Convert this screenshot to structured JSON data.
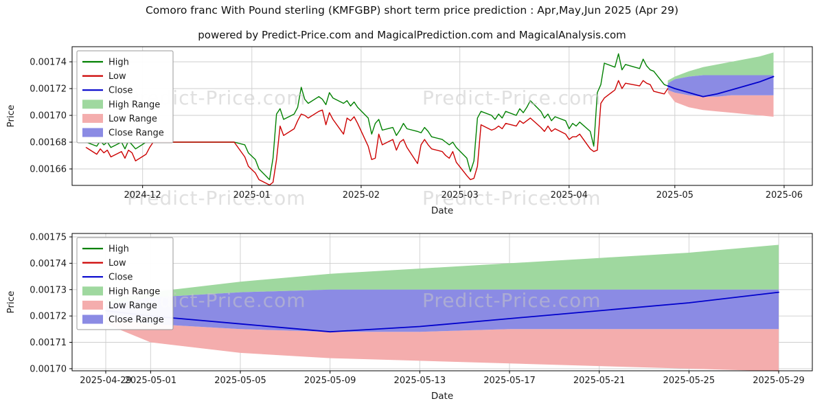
{
  "title": "Comoro franc With Pound sterling (KMFGBP) short term price prediction : Apr,May,Jun 2025 (Apr 29)",
  "subtitle": "powered by Predict-Price.com and MagicalPrediction.com and MagicalAnalysis.com",
  "watermark_text": "Predict-Price.com",
  "legend": {
    "entries": [
      {
        "label": "High",
        "type": "line",
        "color": "#008000"
      },
      {
        "label": "Low",
        "type": "line",
        "color": "#cc0000"
      },
      {
        "label": "Close",
        "type": "line",
        "color": "#0000cc"
      },
      {
        "label": "High Range",
        "type": "patch",
        "color": "#9fd89f"
      },
      {
        "label": "Low Range",
        "type": "patch",
        "color": "#f4adad"
      },
      {
        "label": "Close Range",
        "type": "patch",
        "color": "#8b8be4"
      }
    ]
  },
  "chart_data": [
    {
      "type": "line",
      "name": "history-with-forecast",
      "xlabel": "Date",
      "ylabel": "Price",
      "xlim": [
        "2024-11-11",
        "2025-06-09"
      ],
      "ylim": [
        0.0016477,
        0.0017513
      ],
      "grid": true,
      "legend_position": "upper-left",
      "yticks": [
        {
          "v": 0.00166,
          "label": "0.00166"
        },
        {
          "v": 0.00168,
          "label": "0.00168"
        },
        {
          "v": 0.0017,
          "label": "0.00170"
        },
        {
          "v": 0.00172,
          "label": "0.00172"
        },
        {
          "v": 0.00174,
          "label": "0.00174"
        }
      ],
      "xticks": [
        {
          "d": "2024-12-01",
          "label": "2024-12"
        },
        {
          "d": "2025-01-01",
          "label": "2025-01"
        },
        {
          "d": "2025-02-01",
          "label": "2025-02"
        },
        {
          "d": "2025-03-01",
          "label": "2025-03"
        },
        {
          "d": "2025-04-01",
          "label": "2025-04"
        },
        {
          "d": "2025-05-01",
          "label": "2025-05"
        },
        {
          "d": "2025-06-01",
          "label": "2025-06"
        }
      ],
      "historical": {
        "columns": [
          "date",
          "high",
          "low"
        ],
        "rows": [
          [
            "2024-11-15",
            0.00168,
            0.001676
          ],
          [
            "2024-11-18",
            0.001677,
            0.001671
          ],
          [
            "2024-11-19",
            0.001681,
            0.001675
          ],
          [
            "2024-11-20",
            0.001678,
            0.001672
          ],
          [
            "2024-11-21",
            0.00168,
            0.001674
          ],
          [
            "2024-11-22",
            0.001676,
            0.001669
          ],
          [
            "2024-11-25",
            0.00168,
            0.001673
          ],
          [
            "2024-11-26",
            0.001675,
            0.001668
          ],
          [
            "2024-11-27",
            0.001681,
            0.001674
          ],
          [
            "2024-11-28",
            0.001678,
            0.001672
          ],
          [
            "2024-11-29",
            0.001675,
            0.001666
          ],
          [
            "2024-12-02",
            0.00168,
            0.001671
          ],
          [
            "2024-12-03",
            0.001682,
            0.001676
          ],
          [
            "2024-12-04",
            0.00168,
            0.00168
          ],
          [
            "2024-12-09",
            0.00168,
            0.00168
          ],
          [
            "2024-12-13",
            0.00168,
            0.00168
          ],
          [
            "2024-12-18",
            0.00168,
            0.00168
          ],
          [
            "2024-12-23",
            0.00168,
            0.00168
          ],
          [
            "2024-12-27",
            0.00168,
            0.00168
          ],
          [
            "2024-12-30",
            0.001678,
            0.001669
          ],
          [
            "2024-12-31",
            0.001672,
            0.001662
          ],
          [
            "2025-01-02",
            0.001667,
            0.001657
          ],
          [
            "2025-01-03",
            0.00166,
            0.001652
          ],
          [
            "2025-01-06",
            0.001652,
            0.001648
          ],
          [
            "2025-01-07",
            0.001668,
            0.00165
          ],
          [
            "2025-01-08",
            0.001701,
            0.001667
          ],
          [
            "2025-01-09",
            0.001705,
            0.001692
          ],
          [
            "2025-01-10",
            0.001697,
            0.001685
          ],
          [
            "2025-01-13",
            0.001701,
            0.00169
          ],
          [
            "2025-01-14",
            0.001706,
            0.001696
          ],
          [
            "2025-01-15",
            0.001721,
            0.001701
          ],
          [
            "2025-01-16",
            0.001712,
            0.0017
          ],
          [
            "2025-01-17",
            0.001709,
            0.001698
          ],
          [
            "2025-01-20",
            0.001714,
            0.001703
          ],
          [
            "2025-01-21",
            0.001712,
            0.001704
          ],
          [
            "2025-01-22",
            0.001708,
            0.001693
          ],
          [
            "2025-01-23",
            0.001717,
            0.001702
          ],
          [
            "2025-01-24",
            0.001713,
            0.001697
          ],
          [
            "2025-01-27",
            0.001709,
            0.001686
          ],
          [
            "2025-01-28",
            0.001711,
            0.001698
          ],
          [
            "2025-01-29",
            0.001707,
            0.001696
          ],
          [
            "2025-01-30",
            0.00171,
            0.001699
          ],
          [
            "2025-01-31",
            0.001706,
            0.001694
          ],
          [
            "2025-02-03",
            0.001698,
            0.001677
          ],
          [
            "2025-02-04",
            0.001686,
            0.001667
          ],
          [
            "2025-02-05",
            0.001694,
            0.001668
          ],
          [
            "2025-02-06",
            0.001697,
            0.001686
          ],
          [
            "2025-02-07",
            0.001689,
            0.001678
          ],
          [
            "2025-02-10",
            0.001691,
            0.001682
          ],
          [
            "2025-02-11",
            0.001685,
            0.001674
          ],
          [
            "2025-02-12",
            0.001689,
            0.00168
          ],
          [
            "2025-02-13",
            0.001694,
            0.001682
          ],
          [
            "2025-02-14",
            0.00169,
            0.001676
          ],
          [
            "2025-02-17",
            0.001688,
            0.001664
          ],
          [
            "2025-02-18",
            0.001687,
            0.001678
          ],
          [
            "2025-02-19",
            0.001691,
            0.001682
          ],
          [
            "2025-02-20",
            0.001688,
            0.001678
          ],
          [
            "2025-02-21",
            0.001684,
            0.001675
          ],
          [
            "2025-02-24",
            0.001682,
            0.001673
          ],
          [
            "2025-02-25",
            0.00168,
            0.00167
          ],
          [
            "2025-02-26",
            0.001678,
            0.001668
          ],
          [
            "2025-02-27",
            0.00168,
            0.001673
          ],
          [
            "2025-02-28",
            0.001676,
            0.001665
          ],
          [
            "2025-03-03",
            0.001668,
            0.001655
          ],
          [
            "2025-03-04",
            0.001658,
            0.001652
          ],
          [
            "2025-03-05",
            0.001666,
            0.001653
          ],
          [
            "2025-03-06",
            0.001698,
            0.001662
          ],
          [
            "2025-03-07",
            0.001703,
            0.001693
          ],
          [
            "2025-03-10",
            0.0017,
            0.001689
          ],
          [
            "2025-03-11",
            0.001697,
            0.00169
          ],
          [
            "2025-03-12",
            0.001701,
            0.001692
          ],
          [
            "2025-03-13",
            0.001698,
            0.00169
          ],
          [
            "2025-03-14",
            0.001703,
            0.001694
          ],
          [
            "2025-03-17",
            0.0017,
            0.001692
          ],
          [
            "2025-03-18",
            0.001705,
            0.001696
          ],
          [
            "2025-03-19",
            0.001702,
            0.001694
          ],
          [
            "2025-03-20",
            0.001706,
            0.001696
          ],
          [
            "2025-03-21",
            0.001711,
            0.001698
          ],
          [
            "2025-03-24",
            0.001703,
            0.001691
          ],
          [
            "2025-03-25",
            0.001698,
            0.001688
          ],
          [
            "2025-03-26",
            0.001701,
            0.001692
          ],
          [
            "2025-03-27",
            0.001696,
            0.001688
          ],
          [
            "2025-03-28",
            0.001699,
            0.00169
          ],
          [
            "2025-03-31",
            0.001696,
            0.001686
          ],
          [
            "2025-04-01",
            0.00169,
            0.001682
          ],
          [
            "2025-04-02",
            0.001694,
            0.001684
          ],
          [
            "2025-04-03",
            0.001692,
            0.001684
          ],
          [
            "2025-04-04",
            0.001695,
            0.001686
          ],
          [
            "2025-04-07",
            0.001688,
            0.001675
          ],
          [
            "2025-04-08",
            0.001677,
            0.001673
          ],
          [
            "2025-04-09",
            0.001717,
            0.001674
          ],
          [
            "2025-04-10",
            0.001723,
            0.001709
          ],
          [
            "2025-04-11",
            0.001739,
            0.001713
          ],
          [
            "2025-04-14",
            0.001736,
            0.001719
          ],
          [
            "2025-04-15",
            0.001746,
            0.001726
          ],
          [
            "2025-04-16",
            0.001734,
            0.00172
          ],
          [
            "2025-04-17",
            0.001738,
            0.001724
          ],
          [
            "2025-04-21",
            0.001735,
            0.001722
          ],
          [
            "2025-04-22",
            0.001742,
            0.001726
          ],
          [
            "2025-04-23",
            0.001737,
            0.001724
          ],
          [
            "2025-04-24",
            0.001734,
            0.001723
          ],
          [
            "2025-04-25",
            0.001733,
            0.001718
          ],
          [
            "2025-04-28",
            0.001723,
            0.001716
          ],
          [
            "2025-04-29",
            0.001722,
            0.00172
          ]
        ]
      },
      "forecast": {
        "columns": [
          "date",
          "close",
          "high_top",
          "close_top",
          "close_bottom",
          "low_bottom"
        ],
        "rows": [
          [
            "2025-04-29",
            0.001722,
            0.001726,
            0.001724,
            0.001719,
            0.001717
          ],
          [
            "2025-05-01",
            0.00172,
            0.001729,
            0.001727,
            0.001717,
            0.00171
          ],
          [
            "2025-05-05",
            0.001717,
            0.001733,
            0.001729,
            0.001715,
            0.001706
          ],
          [
            "2025-05-09",
            0.001714,
            0.001736,
            0.00173,
            0.001714,
            0.001704
          ],
          [
            "2025-05-13",
            0.001716,
            0.001738,
            0.00173,
            0.001714,
            0.001703
          ],
          [
            "2025-05-17",
            0.001719,
            0.00174,
            0.00173,
            0.001715,
            0.001702
          ],
          [
            "2025-05-21",
            0.001722,
            0.001742,
            0.00173,
            0.001715,
            0.001701
          ],
          [
            "2025-05-25",
            0.001725,
            0.001744,
            0.00173,
            0.001715,
            0.0017
          ],
          [
            "2025-05-29",
            0.001729,
            0.001747,
            0.00173,
            0.001715,
            0.001699
          ]
        ]
      }
    },
    {
      "type": "line",
      "name": "forecast-detail",
      "xlabel": "Date",
      "ylabel": "Price",
      "xlim": [
        "2025-04-27T12:00:00",
        "2025-05-30T12:00:00"
      ],
      "ylim": [
        0.0016992,
        0.0017513
      ],
      "grid": true,
      "legend_position": "upper-left",
      "yticks": [
        {
          "v": 0.0017,
          "label": "0.00170"
        },
        {
          "v": 0.00171,
          "label": "0.00171"
        },
        {
          "v": 0.00172,
          "label": "0.00172"
        },
        {
          "v": 0.00173,
          "label": "0.00173"
        },
        {
          "v": 0.00174,
          "label": "0.00174"
        },
        {
          "v": 0.00175,
          "label": "0.00175"
        }
      ],
      "xticks": [
        {
          "d": "2025-04-29",
          "label": "2025-04-29"
        },
        {
          "d": "2025-05-01",
          "label": "2025-05-01"
        },
        {
          "d": "2025-05-05",
          "label": "2025-05-05"
        },
        {
          "d": "2025-05-09",
          "label": "2025-05-09"
        },
        {
          "d": "2025-05-13",
          "label": "2025-05-13"
        },
        {
          "d": "2025-05-17",
          "label": "2025-05-17"
        },
        {
          "d": "2025-05-21",
          "label": "2025-05-21"
        },
        {
          "d": "2025-05-25",
          "label": "2025-05-25"
        },
        {
          "d": "2025-05-29",
          "label": "2025-05-29"
        }
      ],
      "forecast": {
        "columns": [
          "date",
          "close",
          "high_top",
          "close_top",
          "close_bottom",
          "low_bottom"
        ],
        "rows": [
          [
            "2025-04-29",
            0.001722,
            0.001726,
            0.001724,
            0.001719,
            0.001717
          ],
          [
            "2025-05-01",
            0.00172,
            0.001729,
            0.001727,
            0.001717,
            0.00171
          ],
          [
            "2025-05-05",
            0.001717,
            0.001733,
            0.001729,
            0.001715,
            0.001706
          ],
          [
            "2025-05-09",
            0.001714,
            0.001736,
            0.00173,
            0.001714,
            0.001704
          ],
          [
            "2025-05-13",
            0.001716,
            0.001738,
            0.00173,
            0.001714,
            0.001703
          ],
          [
            "2025-05-17",
            0.001719,
            0.00174,
            0.00173,
            0.001715,
            0.001702
          ],
          [
            "2025-05-21",
            0.001722,
            0.001742,
            0.00173,
            0.001715,
            0.001701
          ],
          [
            "2025-05-25",
            0.001725,
            0.001744,
            0.00173,
            0.001715,
            0.0017
          ],
          [
            "2025-05-29",
            0.001729,
            0.001747,
            0.00173,
            0.001715,
            0.001699
          ]
        ]
      }
    }
  ]
}
